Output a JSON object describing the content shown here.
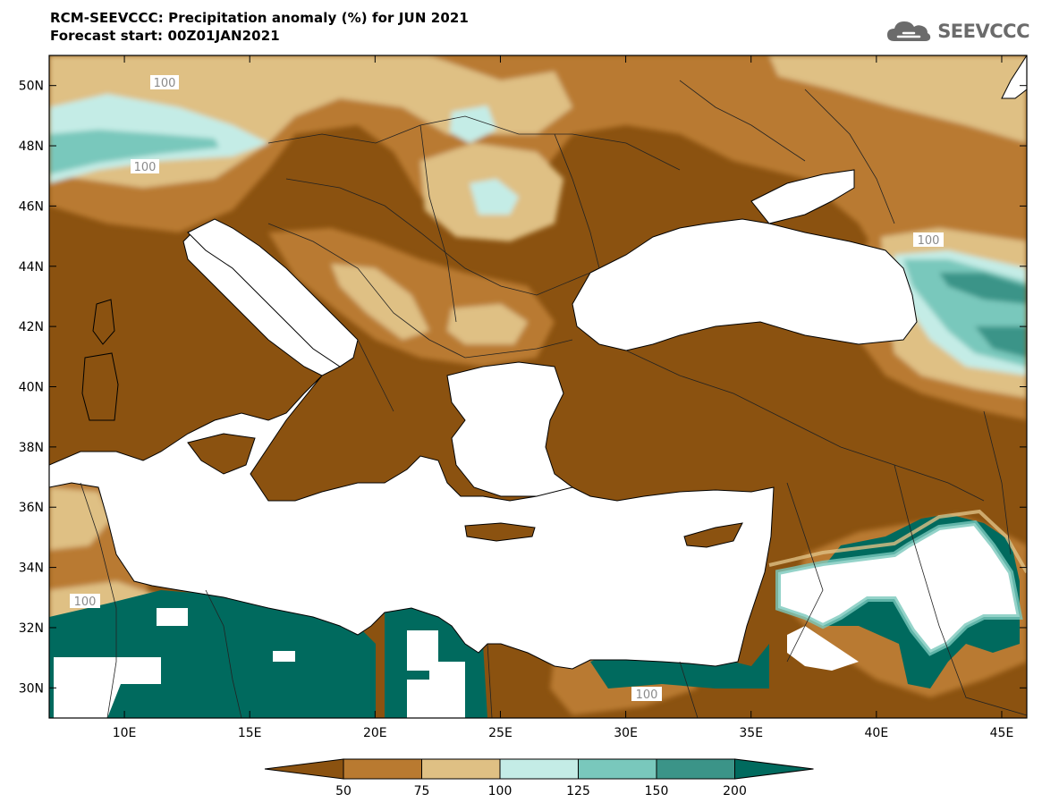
{
  "title": {
    "line1": "RCM-SEEVCCC: Precipitation anomaly (%) for JUN 2021",
    "line2": "Forecast start: 00Z01JAN2021"
  },
  "logo": {
    "text": "SEEVCCC",
    "icon": "cloud-icon"
  },
  "map": {
    "lat_range": [
      29,
      51
    ],
    "lon_range": [
      7,
      46
    ],
    "lat_ticks": [
      "50N",
      "48N",
      "46N",
      "44N",
      "42N",
      "40N",
      "38N",
      "36N",
      "34N",
      "32N",
      "30N"
    ],
    "lon_ticks": [
      "10E",
      "15E",
      "20E",
      "25E",
      "30E",
      "35E",
      "40E",
      "45E"
    ],
    "contour_labels": [
      "100",
      "100",
      "100",
      "100",
      "100"
    ]
  },
  "legend": {
    "bins": [
      {
        "label": "50",
        "color": "#8b5210"
      },
      {
        "label": "75",
        "color": "#b97a30"
      },
      {
        "label": "100",
        "color": "#dfc084"
      },
      {
        "label": "125",
        "color": "#c4ece6"
      },
      {
        "label": "150",
        "color": "#79c8bc"
      },
      {
        "label": "200",
        "color": "#3b9488"
      }
    ],
    "below_color": "#8b5210",
    "above_color": "#006a5e",
    "fill_colors": [
      "#8b5210",
      "#b97a30",
      "#dfc084",
      "#c4ece6",
      "#79c8bc",
      "#3b9488",
      "#006a5e"
    ]
  }
}
